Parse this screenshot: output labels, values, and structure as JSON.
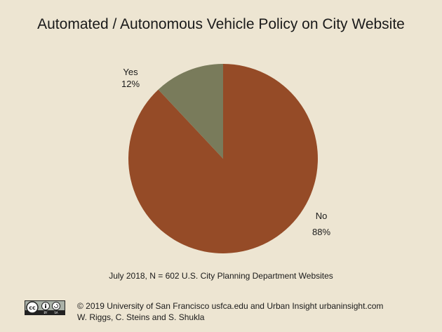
{
  "chart_data": {
    "type": "pie",
    "title": "Automated / Autonomous Vehicle Policy on City Website",
    "slices": [
      {
        "label": "No",
        "value": 88,
        "value_label": "88%",
        "color": "#954b27"
      },
      {
        "label": "Yes",
        "value": 12,
        "value_label": "12%",
        "color": "#797b5b"
      }
    ],
    "start_angle_deg": 0,
    "direction": "clockwise"
  },
  "note": "July 2018, N = 602 U.S. City Planning Department Websites",
  "license_badge": {
    "icon": "creative-commons-by-sa-icon",
    "text": "BY SA"
  },
  "footer": {
    "line1": "© 2019 University of San Francisco usfca.edu and Urban Insight urbaninsight.com",
    "line2": "W. Riggs, C. Steins and S. Shukla"
  }
}
